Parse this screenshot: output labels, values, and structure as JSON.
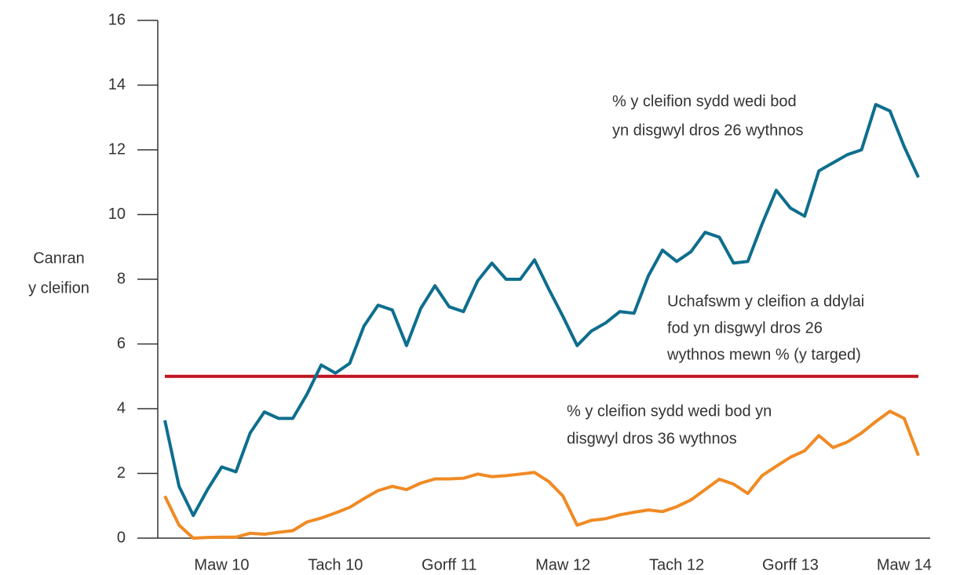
{
  "chart_data": {
    "type": "line",
    "y_label": [
      "Canran",
      "y cleifion"
    ],
    "categories": [
      null,
      null,
      null,
      null,
      "Maw 10",
      null,
      null,
      null,
      null,
      null,
      null,
      null,
      "Tach 10",
      null,
      null,
      null,
      null,
      null,
      null,
      null,
      "Gorff 11",
      null,
      null,
      null,
      null,
      null,
      null,
      null,
      "Maw 12",
      null,
      null,
      null,
      null,
      null,
      null,
      null,
      "Tach 12",
      null,
      null,
      null,
      null,
      null,
      null,
      null,
      "Gorff 13",
      null,
      null,
      null,
      null,
      null,
      null,
      null,
      "Maw 14",
      null
    ],
    "series": [
      {
        "name": [
          "% y cleifion sydd wedi bod",
          "yn disgwyl dros 26 wythnos"
        ],
        "color": "#0e6e8e",
        "values": [
          3.64,
          1.6,
          0.7,
          1.5,
          2.2,
          2.05,
          3.25,
          3.9,
          3.7,
          3.7,
          4.45,
          5.35,
          5.1,
          5.4,
          6.55,
          7.2,
          7.05,
          5.95,
          7.1,
          7.8,
          7.15,
          7.0,
          7.95,
          8.5,
          8.0,
          8.0,
          8.6,
          7.7,
          6.85,
          5.95,
          6.4,
          6.65,
          7.0,
          6.95,
          8.1,
          8.9,
          8.55,
          8.85,
          9.45,
          9.3,
          8.5,
          8.55,
          9.7,
          10.75,
          10.2,
          9.95,
          11.35,
          11.6,
          11.85,
          12.0,
          13.4,
          13.2,
          12.1,
          11.15
        ]
      },
      {
        "name": [
          "% y cleifion sydd wedi bod yn",
          "disgwyl dros 36 wythnos"
        ],
        "color": "#f08a24",
        "values": [
          1.3,
          0.4,
          0.0,
          0.02,
          0.03,
          0.03,
          0.15,
          0.12,
          0.18,
          0.23,
          0.5,
          0.62,
          0.78,
          0.95,
          1.22,
          1.47,
          1.6,
          1.5,
          1.7,
          1.83,
          1.83,
          1.85,
          1.98,
          1.9,
          1.93,
          1.98,
          2.03,
          1.75,
          1.3,
          0.4,
          0.55,
          0.6,
          0.72,
          0.8,
          0.87,
          0.82,
          0.97,
          1.18,
          1.5,
          1.82,
          1.67,
          1.38,
          1.93,
          2.22,
          2.5,
          2.7,
          3.17,
          2.8,
          2.97,
          3.25,
          3.6,
          3.92,
          3.7,
          2.55
        ]
      }
    ],
    "reference_line": {
      "value": 5,
      "color": "#c0141e",
      "label": [
        "Uchafswm y cleifion a ddylai",
        "fod yn disgwyl dros 26",
        "wythnos mewn % (y targed)"
      ]
    },
    "ylim": [
      0,
      16
    ],
    "yticks": [
      0,
      2,
      4,
      6,
      8,
      10,
      12,
      14,
      16
    ],
    "grid": false
  }
}
